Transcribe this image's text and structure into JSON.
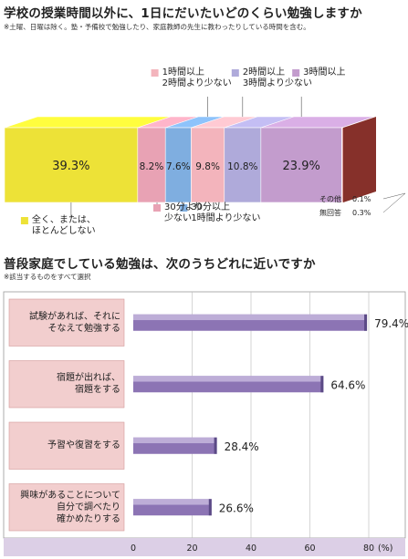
{
  "chart_data": [
    {
      "type": "bar",
      "orientation": "stacked-horizontal-100",
      "title": "学校の授業時間以外に、1日にだいたいどのくらい勉強しますか",
      "note": "※土曜、日曜は除く。塾・予備校で勉強したり、家庭教師の先生に教わったりしている時間を含む。",
      "unit": "%",
      "series": [
        {
          "name": "全く、または、\nほとんどしない",
          "value": 39.3,
          "label": "39.3%",
          "color": "#ede237"
        },
        {
          "name": "30分より\n少ない",
          "value": 8.2,
          "label": "8.2%",
          "color": "#e8a2b4"
        },
        {
          "name": "30分以上\n1時間より少ない",
          "value": 7.6,
          "label": "7.6%",
          "color": "#7faee0"
        },
        {
          "name": "1時間以上\n2時間より少ない",
          "value": 9.8,
          "label": "9.8%",
          "color": "#f3b4bc"
        },
        {
          "name": "2時間以上\n3時間より少ない",
          "value": 10.8,
          "label": "10.8%",
          "color": "#afaada"
        },
        {
          "name": "3時間以上",
          "value": 23.9,
          "label": "23.9%",
          "color": "#c39ccd"
        },
        {
          "name": "その他",
          "value": 0.1,
          "label": "0.1%",
          "color": "#8a7a3e"
        },
        {
          "name": "無回答",
          "value": 0.3,
          "label": "0.3%",
          "color": "#c0443c"
        }
      ]
    },
    {
      "type": "bar",
      "orientation": "horizontal",
      "title": "普段家庭でしている勉強は、次のうちどれに近いですか",
      "note": "※該当するものをすべて選択",
      "categories": [
        "試験があれば、それに\nそなえて勉強する",
        "宿題が出れば、\n宿題をする",
        "予習や復習をする",
        "興味があることについて\n自分で調べたり\n確かめたりする"
      ],
      "values": [
        79.4,
        64.6,
        28.4,
        26.6
      ],
      "value_labels": [
        "79.4%",
        "64.6%",
        "28.4%",
        "26.6%"
      ],
      "xticks": [
        "0",
        "20",
        "40",
        "60",
        "80"
      ],
      "xunit": "(%)",
      "xlim": [
        0,
        80
      ],
      "grid": true,
      "bar_color": "#8c74b4",
      "label_box_color": "#f2cece"
    }
  ]
}
